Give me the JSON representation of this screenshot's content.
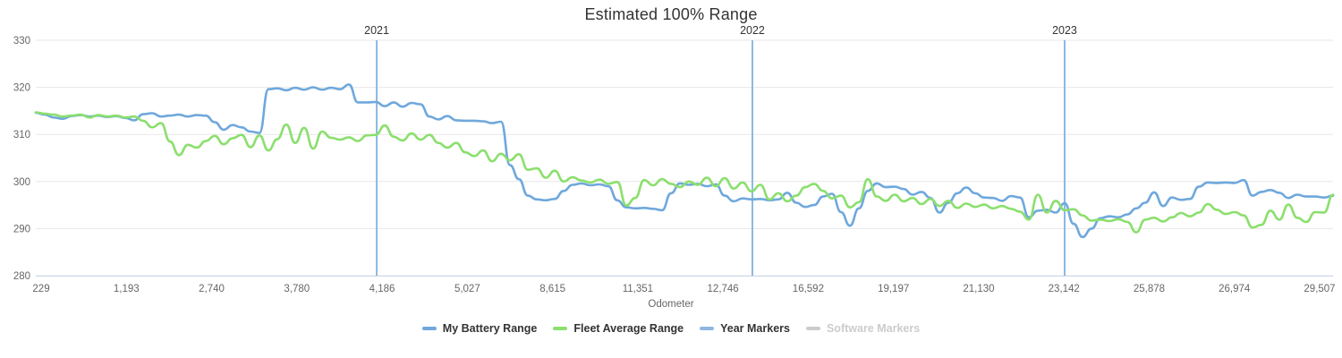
{
  "chart_data": {
    "type": "line",
    "title": "Estimated 100% Range",
    "xlabel": "Odometer",
    "ylim": [
      280,
      330
    ],
    "yticklabels": [
      "280",
      "290",
      "300",
      "310",
      "320",
      "330"
    ],
    "xticklabels": [
      "229",
      "1,193",
      "2,740",
      "3,780",
      "4,186",
      "5,027",
      "8,615",
      "11,351",
      "12,746",
      "16,592",
      "19,197",
      "21,130",
      "23,142",
      "25,878",
      "26,974",
      "29,507"
    ],
    "grid": true,
    "legend_position": "bottom",
    "colors": {
      "grid": "#e7e7e7",
      "axis_line": "#ccd6eb",
      "tick_label": "#666666",
      "title": "#333333",
      "year_label": "#333333"
    },
    "series": [
      {
        "name": "My Battery Range",
        "color": "#6fa8dc",
        "values": [
          314.6,
          314.2,
          313.6,
          313.3,
          313.9,
          314.1,
          313.8,
          314.0,
          313.7,
          313.9,
          313.5,
          313.0,
          314.3,
          314.5,
          313.8,
          314.0,
          314.2,
          313.8,
          314.1,
          314.0,
          312.6,
          311.0,
          312.0,
          311.5,
          310.6,
          310.3,
          319.6,
          319.8,
          319.4,
          319.9,
          319.5,
          320.0,
          319.5,
          319.9,
          319.6,
          320.6,
          316.8,
          316.8,
          316.9,
          316.0,
          316.8,
          315.9,
          316.7,
          316.4,
          313.8,
          313.2,
          313.9,
          313.0,
          312.9,
          312.9,
          312.8,
          312.4,
          312.7,
          303.5,
          300.5,
          297.0,
          296.2,
          296.0,
          296.3,
          298.0,
          299.3,
          299.6,
          299.2,
          299.4,
          299.0,
          296.0,
          294.5,
          294.3,
          294.4,
          294.2,
          293.9,
          297.5,
          299.6,
          299.3,
          299.5,
          299.0,
          299.4,
          297.0,
          295.8,
          296.4,
          296.2,
          296.3,
          296.0,
          296.2,
          297.6,
          295.5,
          294.6,
          295.0,
          296.8,
          297.4,
          293.5,
          290.6,
          294.3,
          298.0,
          299.6,
          298.8,
          298.9,
          298.4,
          297.2,
          297.8,
          296.5,
          293.4,
          295.5,
          297.5,
          298.7,
          297.5,
          296.6,
          296.5,
          295.9,
          296.9,
          296.6,
          292.4,
          293.8,
          294.0,
          293.4,
          295.4,
          291.0,
          288.2,
          290.0,
          292.2,
          292.6,
          292.4,
          293.0,
          294.3,
          295.5,
          297.7,
          294.8,
          296.6,
          296.1,
          296.3,
          298.9,
          299.8,
          299.7,
          299.8,
          299.7,
          300.3,
          297.0,
          297.8,
          298.2,
          297.6,
          296.5,
          297.2,
          296.8,
          296.8,
          296.6,
          297.0
        ]
      },
      {
        "name": "Fleet Average Range",
        "color": "#8bdf6e",
        "values": [
          314.7,
          314.4,
          314.2,
          313.8,
          314.0,
          314.2,
          313.6,
          314.1,
          313.8,
          314.0,
          313.6,
          313.8,
          312.9,
          311.5,
          312.4,
          308.5,
          305.6,
          307.8,
          307.2,
          308.6,
          309.7,
          307.9,
          309.2,
          309.9,
          307.3,
          309.8,
          306.6,
          309.0,
          312.1,
          308.2,
          311.4,
          307.0,
          310.6,
          309.3,
          308.9,
          309.4,
          308.6,
          309.8,
          309.9,
          311.9,
          309.5,
          308.7,
          310.2,
          308.9,
          309.9,
          308.2,
          307.2,
          308.2,
          306.2,
          305.4,
          306.6,
          304.3,
          305.9,
          304.5,
          305.8,
          302.5,
          302.8,
          300.8,
          302.3,
          300.0,
          300.9,
          300.2,
          299.8,
          300.4,
          299.5,
          299.9,
          294.9,
          296.5,
          300.3,
          299.2,
          300.5,
          299.5,
          298.8,
          300.0,
          299.3,
          300.8,
          299.0,
          300.7,
          298.5,
          299.8,
          297.9,
          299.3,
          296.2,
          297.5,
          295.8,
          297.0,
          298.8,
          299.5,
          298.0,
          296.4,
          297.0,
          294.5,
          295.6,
          300.5,
          296.8,
          295.9,
          297.2,
          295.8,
          296.5,
          295.2,
          296.3,
          294.8,
          295.9,
          294.4,
          295.3,
          294.6,
          295.1,
          294.3,
          294.8,
          294.2,
          293.6,
          291.9,
          297.2,
          293.4,
          295.9,
          293.9,
          294.1,
          292.8,
          291.7,
          291.9,
          291.6,
          292.0,
          291.4,
          289.2,
          291.9,
          292.3,
          291.5,
          292.4,
          293.3,
          292.6,
          293.4,
          295.2,
          294.0,
          293.1,
          293.5,
          292.8,
          290.2,
          290.8,
          293.8,
          291.9,
          295.1,
          292.3,
          291.4,
          293.5,
          293.4,
          297.2
        ]
      },
      {
        "name": "Year Markers",
        "color": "#8cb8e2",
        "markers": [
          {
            "label": "2021",
            "frac": 0.2628
          },
          {
            "label": "2022",
            "frac": 0.5524
          },
          {
            "label": "2023",
            "frac": 0.7931
          }
        ]
      },
      {
        "name": "Software Markers",
        "color": "#cccccc",
        "disabled": true
      }
    ]
  }
}
